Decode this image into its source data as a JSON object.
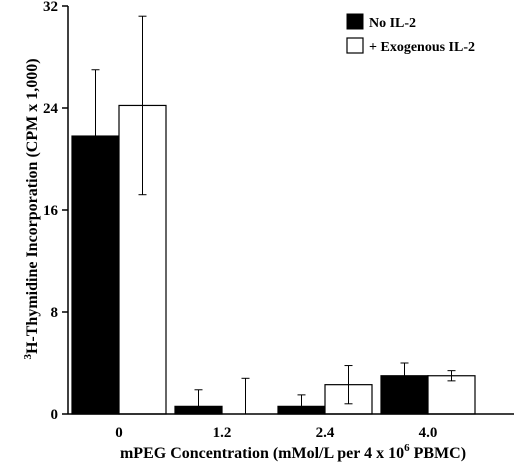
{
  "chart_data": {
    "type": "bar",
    "title": "",
    "xlabel": {
      "text": "mPEG Concentration (mMol/L per 4 x 10",
      "sup": "6",
      "tail": " PBMC)"
    },
    "ylabel": {
      "sup": "3",
      "text": "H-Thymidine Incorporation (CPM x 1,000)"
    },
    "categories": [
      "0",
      "1.2",
      "2.4",
      "4.0"
    ],
    "ylim": [
      0,
      32
    ],
    "yticks": [
      "0",
      "8",
      "16",
      "24",
      "32"
    ],
    "grid": false,
    "legend_position": "top-right",
    "series": [
      {
        "name": "No IL-2",
        "color": "#000000",
        "values": [
          21.8,
          0.6,
          0.6,
          3.0
        ],
        "error": [
          5.2,
          1.3,
          0.9,
          1.0
        ]
      },
      {
        "name": "+ Exogenous IL-2",
        "color": "#ffffff",
        "values": [
          24.2,
          0.0,
          2.3,
          3.0
        ],
        "error": [
          7.0,
          2.8,
          1.5,
          0.4
        ]
      }
    ]
  }
}
